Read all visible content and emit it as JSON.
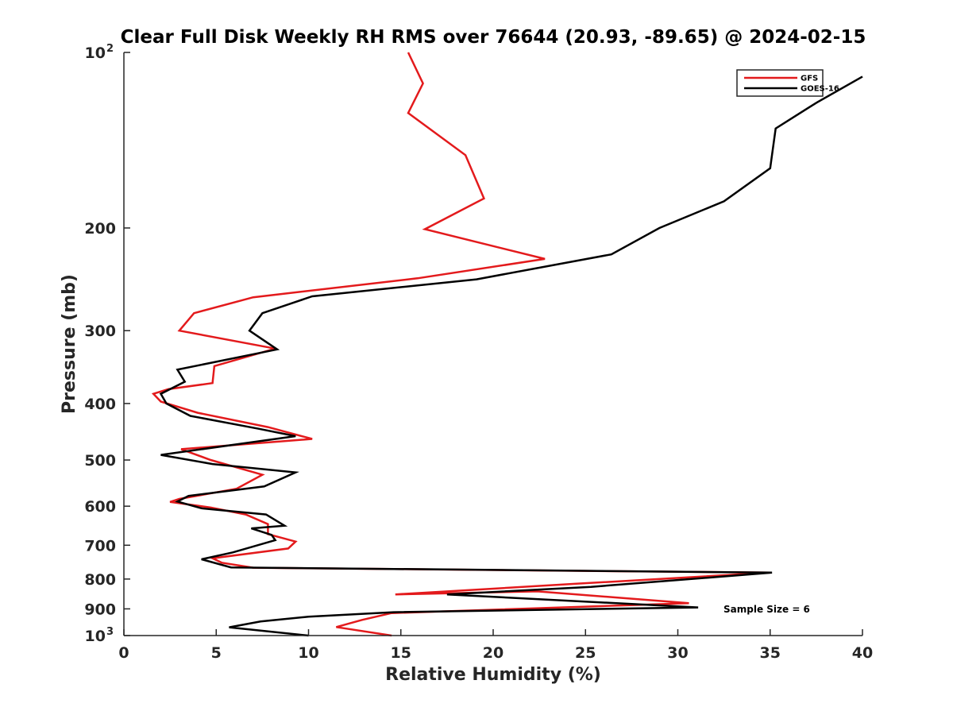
{
  "chart_data": {
    "type": "line",
    "title": "Clear Full Disk Weekly RH RMS over 76644 (20.93, -89.65) @ 2024-02-15",
    "xlabel": "Relative Humidity (%)",
    "ylabel": "Pressure (mb)",
    "xlim": [
      0,
      40
    ],
    "ylim": [
      100,
      1000
    ],
    "yscale": "log",
    "yreversed": true,
    "x_ticks": [
      "0",
      "5",
      "10",
      "15",
      "20",
      "25",
      "30",
      "35",
      "40"
    ],
    "y_ticks": [
      {
        "value": 200,
        "label": "200"
      },
      {
        "value": 300,
        "label": "300"
      },
      {
        "value": 400,
        "label": "400"
      },
      {
        "value": 500,
        "label": "500"
      },
      {
        "value": 600,
        "label": "600"
      },
      {
        "value": 700,
        "label": "700"
      },
      {
        "value": 800,
        "label": "800"
      },
      {
        "value": 900,
        "label": "900"
      }
    ],
    "y_power_ticks": [
      {
        "value": 100,
        "base": "10",
        "exp": "2"
      },
      {
        "value": 1000,
        "base": "10",
        "exp": "3"
      }
    ],
    "legend": {
      "location": "top-right"
    },
    "annotation": "Sample Size = 6",
    "series": [
      {
        "name": "GFS",
        "color": "#e31a1c",
        "x": [
          15.4,
          16.2,
          15.4,
          18.5,
          19.5,
          16.3,
          22.8,
          15.9,
          7.0,
          3.8,
          3.0,
          8.2,
          4.9,
          4.8,
          2.4,
          1.6,
          2.0,
          4.0,
          7.8,
          10.2,
          3.1,
          4.7,
          7.5,
          6.1,
          3.0,
          2.5,
          4.7,
          6.6,
          7.8,
          7.8,
          9.3,
          8.9,
          4.8,
          5.3,
          7.0,
          35.0,
          24.5,
          14.7,
          22.4,
          30.6,
          14.5,
          12.9,
          11.5,
          14.5
        ],
        "y": [
          100,
          113,
          127,
          150,
          178,
          201,
          226,
          244,
          263,
          280,
          300,
          322,
          345,
          369,
          378,
          385,
          397,
          415,
          439,
          460,
          479,
          500,
          530,
          560,
          583,
          590,
          603,
          620,
          644,
          670,
          690,
          709,
          737,
          750,
          765,
          780,
          815,
          850,
          840,
          880,
          915,
          940,
          967,
          1000
        ]
      },
      {
        "name": "GOES-16",
        "color": "#000000",
        "x": [
          40.0,
          37.5,
          35.3,
          35.0,
          32.5,
          29.0,
          26.4,
          19.1,
          10.2,
          7.5,
          6.8,
          8.3,
          2.9,
          3.3,
          2.0,
          2.3,
          3.6,
          7.3,
          9.3,
          2.0,
          4.8,
          9.3,
          7.6,
          3.5,
          2.9,
          4.2,
          7.7,
          8.7,
          6.9,
          8.0,
          8.2,
          5.9,
          4.2,
          5.8,
          35.1,
          25.3,
          17.5,
          31.1,
          14.6,
          10.0,
          7.4,
          5.7,
          10.0
        ],
        "y": [
          110,
          122,
          135,
          158,
          180,
          200,
          222,
          245,
          262,
          280,
          300,
          323,
          350,
          367,
          385,
          400,
          420,
          442,
          455,
          490,
          508,
          525,
          555,
          576,
          589,
          605,
          620,
          648,
          655,
          672,
          686,
          720,
          740,
          764,
          780,
          825,
          850,
          895,
          912,
          928,
          946,
          968,
          1000
        ]
      }
    ]
  }
}
